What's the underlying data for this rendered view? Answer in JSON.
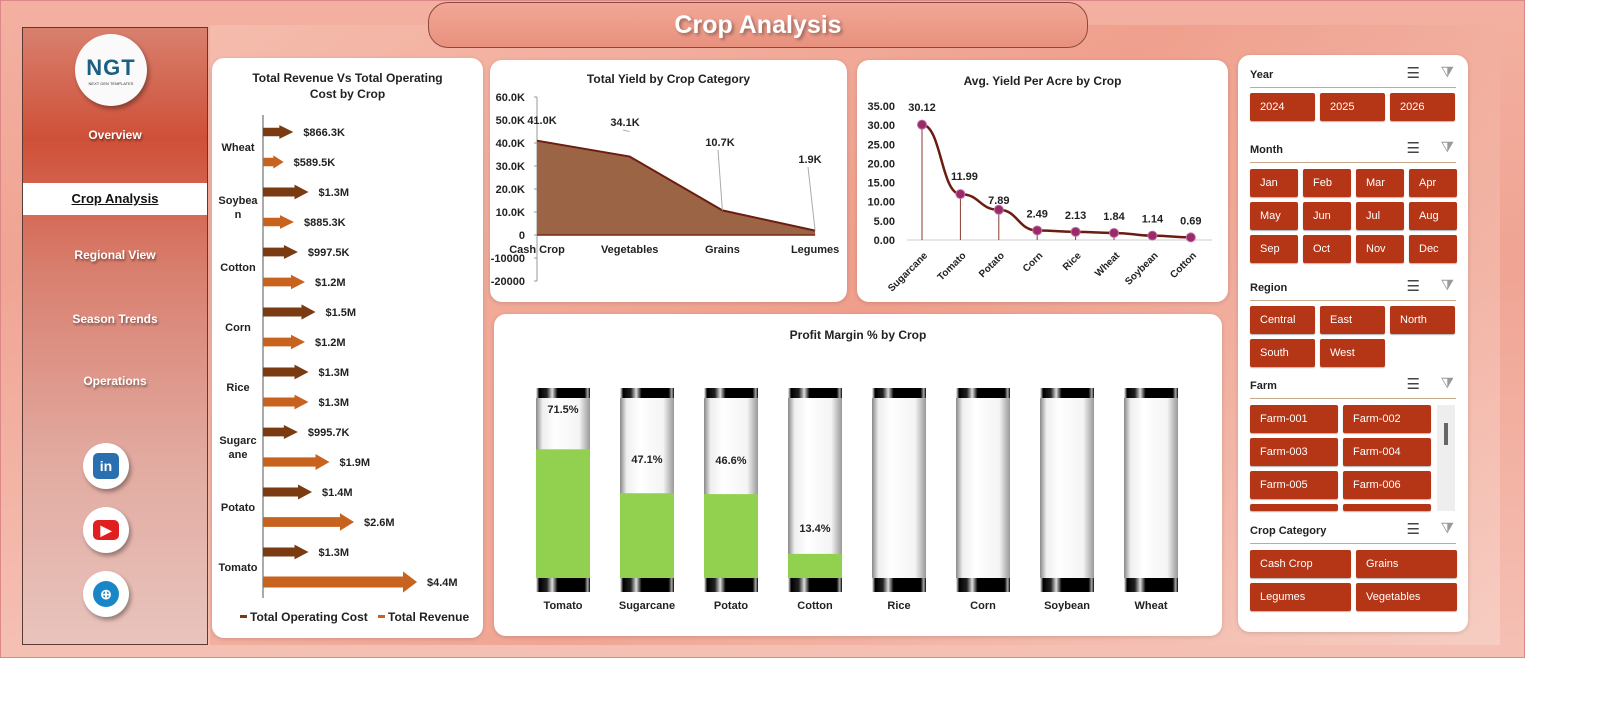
{
  "header": {
    "title": "Crop Analysis"
  },
  "sidebar": {
    "logo_text": "NGT",
    "logo_sub": "NEXT GEN TEMPLATES",
    "items": [
      {
        "label": "Overview",
        "active": false
      },
      {
        "label": "Crop Analysis",
        "active": true
      },
      {
        "label": "Regional View",
        "active": false
      },
      {
        "label": "Season Trends",
        "active": false
      },
      {
        "label": "Operations",
        "active": false
      }
    ],
    "social": [
      {
        "icon": "linkedin-icon",
        "color": "#2a6fb0"
      },
      {
        "icon": "youtube-icon",
        "color": "#e21f1f"
      },
      {
        "icon": "globe-icon",
        "color": "#1a86c8"
      }
    ]
  },
  "colors": {
    "cost": "#7a3a12",
    "revenue": "#c8631f",
    "area": "#9b6444",
    "area_line": "#6b1d10",
    "yield_line": "#6b1d10",
    "marker": "#9a2a6a",
    "profit_fill": "#92d050",
    "slicer": "#b53517"
  },
  "chart_data": [
    {
      "type": "bar",
      "title": "Total Revenue Vs Total Operating Cost by Crop",
      "orientation": "horizontal",
      "categories": [
        "Wheat",
        "Soybean",
        "Cotton",
        "Corn",
        "Rice",
        "Sugarcane",
        "Potato",
        "Tomato"
      ],
      "category_labels": [
        "Wheat",
        "Soybea n",
        "Cotton",
        "Corn",
        "Rice",
        "Sugarc ane",
        "Potato",
        "Tomato"
      ],
      "series": [
        {
          "name": "Total Operating Cost",
          "values": [
            866300,
            1300000,
            997500,
            1500000,
            1300000,
            995700,
            1400000,
            1300000
          ],
          "labels": [
            "$866.3K",
            "$1.3M",
            "$997.5K",
            "$1.5M",
            "$1.3M",
            "$995.7K",
            "$1.4M",
            "$1.3M"
          ]
        },
        {
          "name": "Total Revenue",
          "values": [
            589500,
            885300,
            1200000,
            1200000,
            1300000,
            1900000,
            2600000,
            4400000
          ],
          "labels": [
            "$589.5K",
            "$885.3K",
            "$1.2M",
            "$1.2M",
            "$1.3M",
            "$1.9M",
            "$2.6M",
            "$4.4M"
          ]
        }
      ],
      "legend": "bottom"
    },
    {
      "type": "area",
      "title": "Total Yield by Crop Category",
      "categories": [
        "Cash Crop",
        "Vegetables",
        "Grains",
        "Legumes"
      ],
      "values": [
        41000,
        34100,
        10700,
        1900
      ],
      "labels": [
        "41.0K",
        "34.1K",
        "10.7K",
        "1.9K"
      ],
      "ylim": [
        -20000,
        60000
      ],
      "yticks": [
        "60.0K",
        "50.0K",
        "40.0K",
        "30.0K",
        "20.0K",
        "10.0K",
        "0",
        "-10000",
        "-20000"
      ]
    },
    {
      "type": "line",
      "title": "Avg. Yield Per Acre by Crop",
      "categories": [
        "Sugarcane",
        "Tomato",
        "Potato",
        "Corn",
        "Rice",
        "Wheat",
        "Soybean",
        "Cotton"
      ],
      "values": [
        30.12,
        11.99,
        7.89,
        2.49,
        2.13,
        1.84,
        1.14,
        0.69
      ],
      "labels": [
        "30.12",
        "11.99",
        "7.89",
        "2.49",
        "2.13",
        "1.84",
        "1.14",
        "0.69"
      ],
      "ylim": [
        0,
        35
      ],
      "yticks": [
        "35.00",
        "30.00",
        "25.00",
        "20.00",
        "15.00",
        "10.00",
        "5.00",
        "0.00"
      ]
    },
    {
      "type": "bar",
      "title": "Profit Margin % by Crop",
      "categories": [
        "Tomato",
        "Sugarcane",
        "Potato",
        "Cotton",
        "Rice",
        "Corn",
        "Soybean",
        "Wheat"
      ],
      "values": [
        71.5,
        47.1,
        46.6,
        13.4,
        0,
        0,
        0,
        0
      ],
      "labels": [
        "71.5%",
        "47.1%",
        "46.6%",
        "13.4%",
        "",
        "",
        "",
        ""
      ],
      "ylim": [
        0,
        100
      ]
    }
  ],
  "filters": [
    {
      "title": "Year",
      "items": [
        "2024",
        "2025",
        "2026"
      ]
    },
    {
      "title": "Month",
      "items": [
        "Jan",
        "Feb",
        "Mar",
        "Apr",
        "May",
        "Jun",
        "Jul",
        "Aug",
        "Sep",
        "Oct",
        "Nov",
        "Dec"
      ]
    },
    {
      "title": "Region",
      "items": [
        "Central",
        "East",
        "North",
        "South",
        "West"
      ]
    },
    {
      "title": "Farm",
      "items": [
        "Farm-001",
        "Farm-002",
        "Farm-003",
        "Farm-004",
        "Farm-005",
        "Farm-006"
      ]
    },
    {
      "title": "Crop Category",
      "items": [
        "Cash Crop",
        "Grains",
        "Legumes",
        "Vegetables"
      ]
    }
  ]
}
